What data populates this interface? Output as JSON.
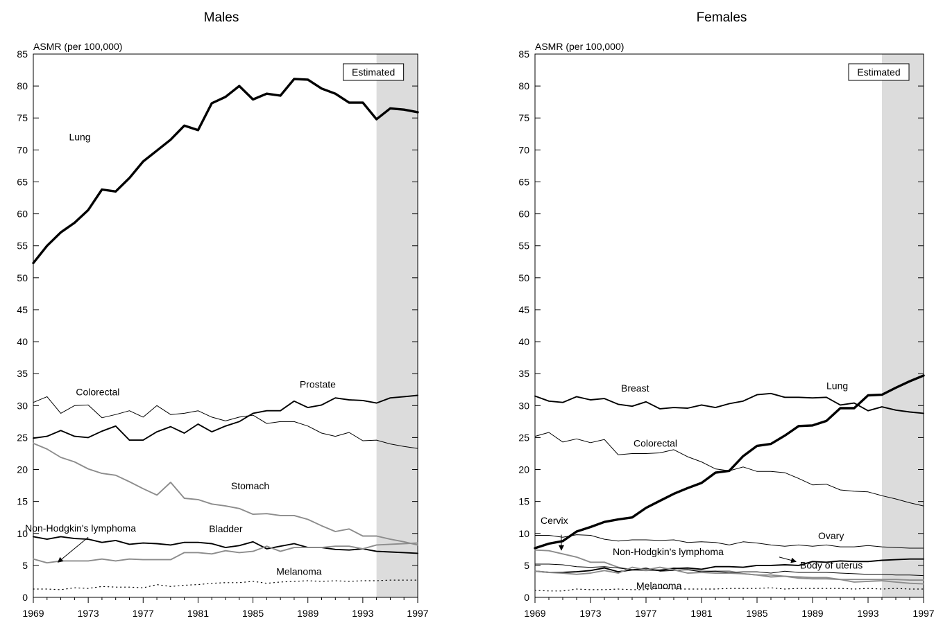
{
  "colors": {
    "black": "#000000",
    "gray": "#8c8c8c",
    "shade": "#dcdcdc"
  },
  "chart_data": [
    {
      "type": "line",
      "title": "Males",
      "ylabel": "ASMR (per 100,000)",
      "xlabel": "",
      "xlim": [
        1969,
        1997
      ],
      "ylim": [
        0,
        85
      ],
      "x_ticks": [
        "1969",
        "1973",
        "1977",
        "1981",
        "1985",
        "1989",
        "1993",
        "1997"
      ],
      "y_ticks": [
        "0",
        "5",
        "10",
        "15",
        "20",
        "25",
        "30",
        "35",
        "40",
        "45",
        "50",
        "55",
        "60",
        "65",
        "70",
        "75",
        "80",
        "85"
      ],
      "grid": false,
      "estimated_region": {
        "label": "Estimated",
        "from": 1994,
        "to": 1997
      },
      "x": [
        1969,
        1970,
        1971,
        1972,
        1973,
        1974,
        1975,
        1976,
        1977,
        1978,
        1979,
        1980,
        1981,
        1982,
        1983,
        1984,
        1985,
        1986,
        1987,
        1988,
        1989,
        1990,
        1991,
        1992,
        1993,
        1994,
        1995,
        1996,
        1997
      ],
      "series": [
        {
          "name": "Lung",
          "color": "#000000",
          "width": 3.4,
          "dash": "",
          "values": [
            52.3,
            55.0,
            57.1,
            58.6,
            60.6,
            63.8,
            63.5,
            65.6,
            68.2,
            69.9,
            71.6,
            73.8,
            73.1,
            77.3,
            78.3,
            80.0,
            77.9,
            78.8,
            78.5,
            81.1,
            81.0,
            79.6,
            78.8,
            77.4,
            77.4,
            74.8,
            76.5,
            76.3,
            75.9
          ],
          "label": "Lung",
          "label_at": [
            1971.6,
            71.5
          ]
        },
        {
          "name": "Colorectal",
          "color": "#000000",
          "width": 1.0,
          "dash": "",
          "values": [
            30.5,
            31.4,
            28.8,
            30.0,
            30.1,
            28.1,
            28.6,
            29.2,
            28.2,
            30.0,
            28.6,
            28.8,
            29.2,
            28.2,
            27.6,
            28.2,
            28.5,
            27.2,
            27.5,
            27.5,
            26.8,
            25.7,
            25.2,
            25.8,
            24.5,
            24.6,
            24.0,
            23.6,
            23.3
          ],
          "label": "Colorectal",
          "label_at": [
            1972.1,
            31.6
          ]
        },
        {
          "name": "Prostate",
          "color": "#000000",
          "width": 1.9,
          "dash": "",
          "values": [
            24.9,
            25.2,
            26.1,
            25.2,
            25.0,
            26.0,
            26.8,
            24.6,
            24.6,
            25.9,
            26.7,
            25.7,
            27.1,
            25.9,
            26.8,
            27.5,
            28.8,
            29.2,
            29.2,
            30.7,
            29.7,
            30.1,
            31.2,
            30.9,
            30.8,
            30.4,
            31.2,
            31.4,
            31.6
          ],
          "label": "Prostate",
          "label_at": [
            1988.4,
            32.8
          ]
        },
        {
          "name": "Stomach",
          "color": "#8c8c8c",
          "width": 1.9,
          "dash": "",
          "values": [
            24.1,
            23.2,
            21.9,
            21.2,
            20.1,
            19.4,
            19.1,
            18.1,
            17.0,
            16.0,
            18.0,
            15.5,
            15.3,
            14.6,
            14.3,
            13.9,
            13.0,
            13.1,
            12.8,
            12.8,
            12.2,
            11.2,
            10.3,
            10.7,
            9.6,
            9.6,
            9.1,
            8.7,
            8.2
          ],
          "label": "Stomach",
          "label_at": [
            1983.4,
            16.9
          ]
        },
        {
          "name": "Bladder",
          "color": "#000000",
          "width": 1.9,
          "dash": "",
          "values": [
            9.5,
            9.1,
            9.5,
            9.2,
            9.1,
            8.6,
            8.9,
            8.3,
            8.5,
            8.4,
            8.2,
            8.6,
            8.6,
            8.4,
            7.8,
            8.1,
            8.7,
            7.6,
            8.0,
            8.4,
            7.8,
            7.8,
            7.5,
            7.4,
            7.6,
            7.2,
            7.1,
            7.0,
            6.9
          ],
          "label": "Bladder",
          "label_at": [
            1981.8,
            10.2
          ]
        },
        {
          "name": "Non-Hodgkin's lymphoma",
          "color": "#8c8c8c",
          "width": 1.9,
          "dash": "",
          "values": [
            6.0,
            5.4,
            5.7,
            5.7,
            5.7,
            6.0,
            5.7,
            6.0,
            5.9,
            5.9,
            5.9,
            7.0,
            7.0,
            6.8,
            7.3,
            7.0,
            7.2,
            8.0,
            7.2,
            7.8,
            7.8,
            7.8,
            8.0,
            8.0,
            7.6,
            8.2,
            8.3,
            8.4,
            8.5
          ],
          "label": "Non-Hodgkin's lymphoma",
          "label_at": [
            1968.4,
            10.3
          ]
        },
        {
          "name": "Melanoma",
          "color": "#000000",
          "width": 1.2,
          "dash": "1.2 4.8",
          "values": [
            1.3,
            1.3,
            1.2,
            1.5,
            1.4,
            1.7,
            1.6,
            1.6,
            1.5,
            2.0,
            1.7,
            1.9,
            2.0,
            2.2,
            2.3,
            2.3,
            2.5,
            2.2,
            2.4,
            2.5,
            2.6,
            2.5,
            2.6,
            2.5,
            2.6,
            2.6,
            2.7,
            2.7,
            2.7
          ],
          "label": "Melanoma",
          "label_at": [
            1986.7,
            3.5
          ]
        }
      ],
      "arrows": [
        {
          "from": [
            1973.0,
            9.4
          ],
          "to": [
            1970.8,
            5.5
          ],
          "color": "#000000"
        }
      ]
    },
    {
      "type": "line",
      "title": "Females",
      "ylabel": "ASMR (per 100,000)",
      "xlabel": "",
      "xlim": [
        1969,
        1997
      ],
      "ylim": [
        0,
        85
      ],
      "x_ticks": [
        "1969",
        "1973",
        "1977",
        "1981",
        "1985",
        "1989",
        "1993",
        "1997"
      ],
      "y_ticks": [
        "0",
        "5",
        "10",
        "15",
        "20",
        "25",
        "30",
        "35",
        "40",
        "45",
        "50",
        "55",
        "60",
        "65",
        "70",
        "75",
        "80",
        "85"
      ],
      "grid": false,
      "estimated_region": {
        "label": "Estimated",
        "from": 1994,
        "to": 1997
      },
      "x": [
        1969,
        1970,
        1971,
        1972,
        1973,
        1974,
        1975,
        1976,
        1977,
        1978,
        1979,
        1980,
        1981,
        1982,
        1983,
        1984,
        1985,
        1986,
        1987,
        1988,
        1989,
        1990,
        1991,
        1992,
        1993,
        1994,
        1995,
        1996,
        1997
      ],
      "series": [
        {
          "name": "Breast",
          "color": "#000000",
          "width": 1.9,
          "dash": "",
          "values": [
            31.5,
            30.7,
            30.5,
            31.4,
            30.9,
            31.1,
            30.2,
            29.9,
            30.6,
            29.5,
            29.7,
            29.6,
            30.1,
            29.7,
            30.3,
            30.7,
            31.7,
            31.9,
            31.3,
            31.3,
            31.2,
            31.3,
            30.1,
            30.4,
            29.2,
            29.8,
            29.3,
            29.0,
            28.8
          ],
          "label": "Breast",
          "label_at": [
            1975.2,
            32.2
          ]
        },
        {
          "name": "Lung",
          "color": "#000000",
          "width": 3.4,
          "dash": "",
          "values": [
            7.7,
            8.4,
            8.8,
            10.3,
            11.0,
            11.8,
            12.2,
            12.5,
            14.0,
            15.1,
            16.2,
            17.1,
            17.9,
            19.5,
            19.8,
            22.1,
            23.7,
            24.0,
            25.3,
            26.8,
            26.9,
            27.6,
            29.6,
            29.6,
            31.6,
            31.7,
            32.8,
            33.8,
            34.7
          ],
          "label": "Lung",
          "label_at": [
            1990.0,
            32.6
          ]
        },
        {
          "name": "Colorectal",
          "color": "#000000",
          "width": 1.0,
          "dash": "",
          "values": [
            25.2,
            25.8,
            24.3,
            24.8,
            24.2,
            24.7,
            22.3,
            22.5,
            22.5,
            22.6,
            23.1,
            22.0,
            21.2,
            20.1,
            19.8,
            20.4,
            19.7,
            19.7,
            19.5,
            18.6,
            17.6,
            17.7,
            16.8,
            16.6,
            16.5,
            15.9,
            15.4,
            14.8,
            14.3
          ],
          "label": "Colorectal",
          "label_at": [
            1976.1,
            23.6
          ]
        },
        {
          "name": "Ovary",
          "color": "#000000",
          "width": 1.0,
          "dash": "",
          "values": [
            9.7,
            9.7,
            9.4,
            9.8,
            9.7,
            9.1,
            8.8,
            9.0,
            9.0,
            8.9,
            9.0,
            8.6,
            8.7,
            8.6,
            8.2,
            8.7,
            8.5,
            8.2,
            8.0,
            8.2,
            8.0,
            8.2,
            7.9,
            7.9,
            8.1,
            7.9,
            7.8,
            7.7,
            7.7
          ],
          "label": "Ovary",
          "label_at": [
            1989.4,
            9.1
          ]
        },
        {
          "name": "Cervix",
          "color": "#8c8c8c",
          "width": 1.9,
          "dash": "",
          "values": [
            7.4,
            7.3,
            6.8,
            6.3,
            5.5,
            5.5,
            4.7,
            4.3,
            4.2,
            4.3,
            4.6,
            4.4,
            4.1,
            4.1,
            4.1,
            3.7,
            3.5,
            3.5,
            3.3,
            3.0,
            2.9,
            2.9,
            2.8,
            2.4,
            2.5,
            2.6,
            2.4,
            2.2,
            2.1
          ],
          "label": "Cervix",
          "label_at": [
            1969.4,
            11.5
          ]
        },
        {
          "name": "Body of uterus",
          "color": "#000000",
          "width": 1.9,
          "dash": "",
          "values": [
            4.1,
            3.9,
            3.9,
            4.0,
            4.2,
            4.6,
            4.0,
            4.3,
            4.4,
            4.2,
            4.5,
            4.6,
            4.4,
            4.8,
            4.8,
            4.7,
            5.0,
            5.0,
            5.1,
            5.0,
            5.6,
            5.5,
            5.7,
            5.6,
            5.6,
            5.8,
            5.9,
            6.0,
            6.0
          ],
          "label": "Body of uterus",
          "label_at": [
            1988.1,
            4.5
          ]
        },
        {
          "name": "Non-Hodgkin's lymphoma",
          "color": "#000000",
          "width": 1.0,
          "dash": "",
          "values": [
            5.2,
            5.2,
            5.1,
            4.8,
            4.7,
            4.8,
            4.6,
            4.3,
            4.6,
            4.1,
            4.2,
            4.3,
            4.0,
            4.1,
            3.9,
            4.0,
            4.0,
            3.8,
            4.1,
            3.9,
            3.9,
            3.9,
            3.8,
            3.7,
            3.6,
            3.6,
            3.5,
            3.5,
            3.4
          ],
          "label": "Non-Hodgkin's lymphoma",
          "label_at": [
            1974.6,
            6.6
          ]
        },
        {
          "name": "Melanoma",
          "color": "#8c8c8c",
          "width": 1.9,
          "dash": "",
          "values": [
            4.1,
            3.9,
            3.8,
            3.6,
            3.8,
            4.2,
            3.8,
            4.7,
            4.3,
            4.7,
            4.3,
            3.8,
            3.9,
            3.8,
            3.8,
            3.7,
            3.5,
            3.2,
            3.3,
            3.2,
            3.1,
            3.1,
            2.8,
            2.8,
            2.8,
            2.8,
            2.8,
            2.7,
            2.7
          ],
          "label": "Melanoma",
          "label_at": [
            1976.3,
            1.3
          ]
        },
        {
          "name": "Melanoma (dotted)",
          "color": "#000000",
          "width": 1.2,
          "dash": "1.2 4.8",
          "values": [
            1.1,
            1.0,
            1.0,
            1.3,
            1.2,
            1.2,
            1.3,
            1.2,
            1.2,
            1.4,
            1.3,
            1.3,
            1.3,
            1.3,
            1.4,
            1.4,
            1.4,
            1.5,
            1.3,
            1.4,
            1.4,
            1.4,
            1.4,
            1.3,
            1.4,
            1.3,
            1.4,
            1.3,
            1.3
          ],
          "label": "",
          "label_at": null
        }
      ],
      "arrows": [
        {
          "from": [
            1970.9,
            9.8
          ],
          "to": [
            1970.9,
            7.4
          ],
          "color": "#000000"
        },
        {
          "from": [
            1986.6,
            6.3
          ],
          "to": [
            1987.8,
            5.6
          ],
          "color": "#000000"
        }
      ]
    }
  ]
}
